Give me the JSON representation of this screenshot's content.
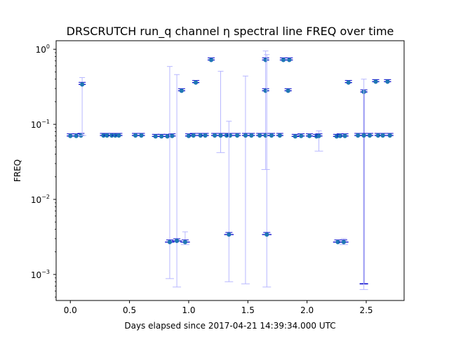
{
  "chart_data": {
    "type": "scatter",
    "title": "DRSCRUTCH run_q channel η spectral line FREQ over time",
    "xlabel": "Days elapsed since 2017-04-21 14:39:34.000 UTC",
    "ylabel": "FREQ",
    "xlim": [
      -0.12,
      2.82
    ],
    "ylim": [
      0.00045,
      1.3
    ],
    "yscale": "log",
    "grid": false,
    "x_ticks": [
      {
        "value": 0.0,
        "label": "0.0"
      },
      {
        "value": 0.5,
        "label": "0.5"
      },
      {
        "value": 1.0,
        "label": "1.0"
      },
      {
        "value": 1.5,
        "label": "1.5"
      },
      {
        "value": 2.0,
        "label": "2.0"
      },
      {
        "value": 2.5,
        "label": "2.5"
      }
    ],
    "y_ticks": [
      {
        "value": 0.001,
        "base": "10",
        "exp": "−3"
      },
      {
        "value": 0.01,
        "base": "10",
        "exp": "−2"
      },
      {
        "value": 0.1,
        "base": "10",
        "exp": "−1"
      },
      {
        "value": 1,
        "base": "10",
        "exp": "0"
      }
    ],
    "colors": {
      "marker": "#1f77b4",
      "bar": "#0000cc",
      "error": "#b8b8ff"
    },
    "points": [
      {
        "x": 0.0,
        "y": 0.07,
        "xerr": 0.03
      },
      {
        "x": 0.05,
        "y": 0.07,
        "xerr": 0.03
      },
      {
        "x": 0.09,
        "y": 0.071,
        "xerr": 0.03
      },
      {
        "x": 0.1,
        "y": 0.34,
        "xerr": 0.03,
        "lo": 0.071,
        "hi": 0.42
      },
      {
        "x": 0.28,
        "y": 0.071,
        "xerr": 0.03
      },
      {
        "x": 0.31,
        "y": 0.071,
        "xerr": 0.03
      },
      {
        "x": 0.35,
        "y": 0.071,
        "xerr": 0.03
      },
      {
        "x": 0.38,
        "y": 0.071,
        "xerr": 0.03
      },
      {
        "x": 0.41,
        "y": 0.071,
        "xerr": 0.03
      },
      {
        "x": 0.55,
        "y": 0.071,
        "xerr": 0.03
      },
      {
        "x": 0.6,
        "y": 0.071,
        "xerr": 0.03
      },
      {
        "x": 0.72,
        "y": 0.069,
        "xerr": 0.03
      },
      {
        "x": 0.77,
        "y": 0.069,
        "xerr": 0.03
      },
      {
        "x": 0.82,
        "y": 0.069,
        "xerr": 0.03
      },
      {
        "x": 0.86,
        "y": 0.07,
        "xerr": 0.03
      },
      {
        "x": 0.84,
        "y": 0.0027,
        "xerr": 0.04,
        "lo": 0.00088,
        "hi": 0.59
      },
      {
        "x": 0.9,
        "y": 0.0028,
        "xerr": 0.04,
        "lo": 0.00068,
        "hi": 0.46
      },
      {
        "x": 0.97,
        "y": 0.0027,
        "xerr": 0.04,
        "lo": 0.0025,
        "hi": 0.0037
      },
      {
        "x": 0.94,
        "y": 0.28,
        "xerr": 0.03
      },
      {
        "x": 1.06,
        "y": 0.36,
        "xerr": 0.03
      },
      {
        "x": 1.0,
        "y": 0.07,
        "xerr": 0.03
      },
      {
        "x": 1.04,
        "y": 0.071,
        "xerr": 0.03
      },
      {
        "x": 1.1,
        "y": 0.071,
        "xerr": 0.03
      },
      {
        "x": 1.14,
        "y": 0.071,
        "xerr": 0.03
      },
      {
        "x": 1.19,
        "y": 0.72,
        "xerr": 0.03
      },
      {
        "x": 1.22,
        "y": 0.071,
        "xerr": 0.03
      },
      {
        "x": 1.27,
        "y": 0.071,
        "xerr": 0.03,
        "lo": 0.042,
        "hi": 0.51
      },
      {
        "x": 1.32,
        "y": 0.071,
        "xerr": 0.03
      },
      {
        "x": 1.35,
        "y": 0.071,
        "xerr": 0.03
      },
      {
        "x": 1.34,
        "y": 0.0034,
        "xerr": 0.04,
        "lo": 0.0008,
        "hi": 0.11
      },
      {
        "x": 1.41,
        "y": 0.071,
        "xerr": 0.03
      },
      {
        "x": 1.48,
        "y": 0.071,
        "xerr": 0.03,
        "lo": 0.00075,
        "hi": 0.44
      },
      {
        "x": 1.53,
        "y": 0.071,
        "xerr": 0.03
      },
      {
        "x": 1.6,
        "y": 0.071,
        "xerr": 0.03
      },
      {
        "x": 1.65,
        "y": 0.071,
        "xerr": 0.03,
        "lo": 0.025,
        "hi": 0.95
      },
      {
        "x": 1.65,
        "y": 0.72,
        "xerr": 0.03
      },
      {
        "x": 1.65,
        "y": 0.28,
        "xerr": 0.03
      },
      {
        "x": 1.66,
        "y": 0.0034,
        "xerr": 0.04,
        "lo": 0.00068,
        "hi": 0.85
      },
      {
        "x": 1.7,
        "y": 0.071,
        "xerr": 0.03
      },
      {
        "x": 1.77,
        "y": 0.071,
        "xerr": 0.03
      },
      {
        "x": 1.8,
        "y": 0.72,
        "xerr": 0.03
      },
      {
        "x": 1.85,
        "y": 0.72,
        "xerr": 0.03
      },
      {
        "x": 1.84,
        "y": 0.28,
        "xerr": 0.03
      },
      {
        "x": 1.9,
        "y": 0.069,
        "xerr": 0.03
      },
      {
        "x": 1.95,
        "y": 0.07,
        "xerr": 0.03
      },
      {
        "x": 2.02,
        "y": 0.07,
        "xerr": 0.03
      },
      {
        "x": 2.08,
        "y": 0.069,
        "xerr": 0.03
      },
      {
        "x": 2.1,
        "y": 0.07,
        "xerr": 0.03,
        "lo": 0.044,
        "hi": 0.082
      },
      {
        "x": 2.25,
        "y": 0.069,
        "xerr": 0.03
      },
      {
        "x": 2.28,
        "y": 0.07,
        "xerr": 0.03
      },
      {
        "x": 2.32,
        "y": 0.07,
        "xerr": 0.03
      },
      {
        "x": 2.26,
        "y": 0.0027,
        "xerr": 0.04
      },
      {
        "x": 2.31,
        "y": 0.0027,
        "xerr": 0.04,
        "lo": 0.0025,
        "hi": 0.003
      },
      {
        "x": 2.35,
        "y": 0.36,
        "xerr": 0.03
      },
      {
        "x": 2.43,
        "y": 0.071,
        "xerr": 0.03
      },
      {
        "x": 2.48,
        "y": 0.27,
        "xerr": 0.03,
        "lo": 0.00075,
        "hi": 0.27,
        "strong": true
      },
      {
        "x": 2.48,
        "y": 0.071,
        "xerr": 0.03,
        "lo": 0.00063,
        "hi": 0.4
      },
      {
        "x": 2.53,
        "y": 0.071,
        "xerr": 0.03
      },
      {
        "x": 2.58,
        "y": 0.37,
        "xerr": 0.03
      },
      {
        "x": 2.6,
        "y": 0.071,
        "xerr": 0.03
      },
      {
        "x": 2.64,
        "y": 0.071,
        "xerr": 0.03
      },
      {
        "x": 2.68,
        "y": 0.37,
        "xerr": 0.03
      },
      {
        "x": 2.7,
        "y": 0.071,
        "xerr": 0.03
      }
    ]
  }
}
